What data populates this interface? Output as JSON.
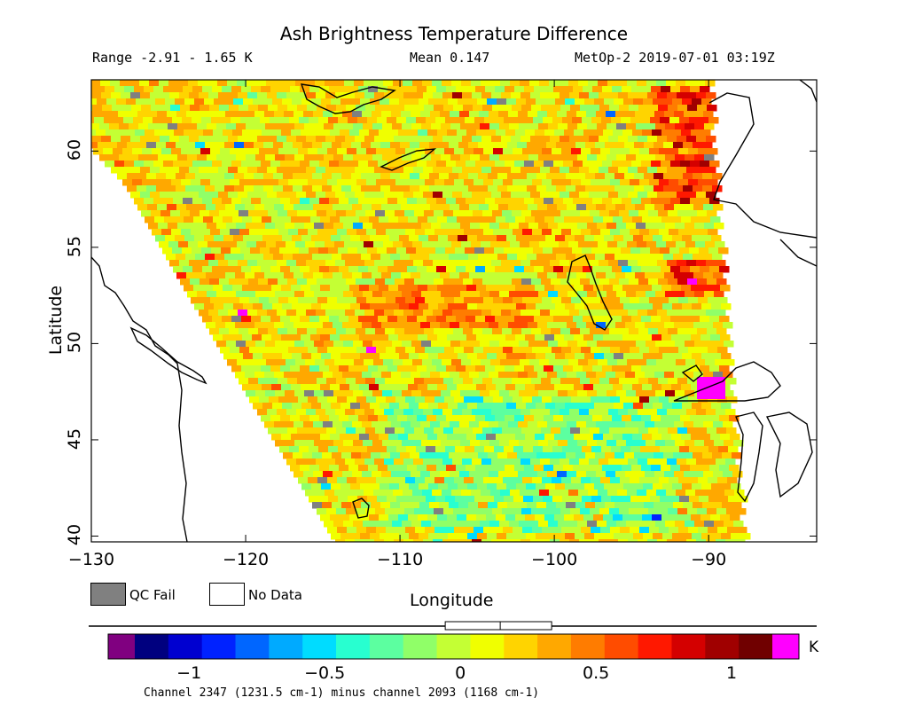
{
  "header": {
    "title": "Ash Brightness Temperature Difference",
    "range": "Range -2.91 - 1.65 K",
    "mean": "Mean 0.147",
    "satellite_time": "MetOp-2 2019-07-01 03:19Z"
  },
  "axes": {
    "xlabel": "Longitude",
    "ylabel": "Latitude",
    "x_ticks": [
      "-130",
      "-120",
      "-110",
      "-100",
      "-90"
    ],
    "y_ticks": [
      "40",
      "45",
      "50",
      "55",
      "60"
    ],
    "xlim": [
      -130,
      -83
    ],
    "ylim": [
      39.7,
      63.7
    ]
  },
  "legend": {
    "qc_fail": "QC Fail",
    "no_data": "No Data",
    "qc_color": "#808080",
    "nodata_color": "#ffffff"
  },
  "colorbar": {
    "ticks": [
      "-1",
      "-0.5",
      "0",
      "0.5",
      "1"
    ],
    "range": [
      -1.2,
      1.15
    ],
    "unit": "K",
    "caption": "Channel 2347 (1231.5 cm-1) minus channel 2093 (1168 cm-1)",
    "underflow_color": "#800080",
    "overflow_color": "#ff00ff",
    "colors": [
      "#00007f",
      "#0000d0",
      "#0022ff",
      "#0066ff",
      "#00aaff",
      "#00dcff",
      "#28ffd0",
      "#5cffa0",
      "#90ff68",
      "#c4ff34",
      "#f0ff00",
      "#ffd400",
      "#ffa800",
      "#ff7c00",
      "#ff4c00",
      "#ff1800",
      "#d40000",
      "#a00000",
      "#700000"
    ],
    "mean_marker": 0.147
  },
  "overlay_labels": {
    "mean_value": 0.147
  }
}
